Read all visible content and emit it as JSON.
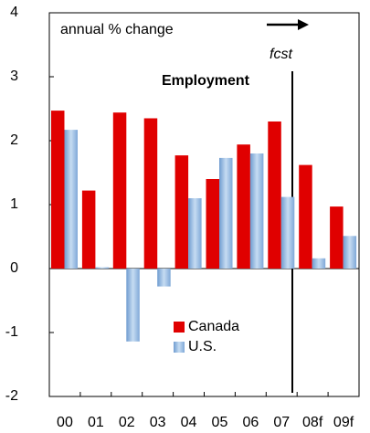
{
  "chart_data": {
    "type": "bar",
    "annotations": [
      "annual % change",
      "fcst"
    ],
    "title": "Employment",
    "categories": [
      "00",
      "01",
      "02",
      "03",
      "04",
      "05",
      "06",
      "07",
      "08f",
      "09f"
    ],
    "series": [
      {
        "name": "Canada",
        "color": "#e00000",
        "values": [
          2.47,
          1.22,
          2.44,
          2.35,
          1.77,
          1.4,
          1.94,
          2.3,
          1.62,
          0.97
        ]
      },
      {
        "name": "U.S.",
        "color": "#99bde0",
        "values": [
          2.17,
          0.02,
          -1.14,
          -0.28,
          1.1,
          1.73,
          1.8,
          1.12,
          0.16,
          0.51
        ]
      }
    ],
    "ylim": [
      -2,
      4
    ],
    "yticks": [
      -2,
      -1,
      0,
      1,
      2,
      3,
      4
    ],
    "grid": false,
    "legend": "bottom"
  }
}
